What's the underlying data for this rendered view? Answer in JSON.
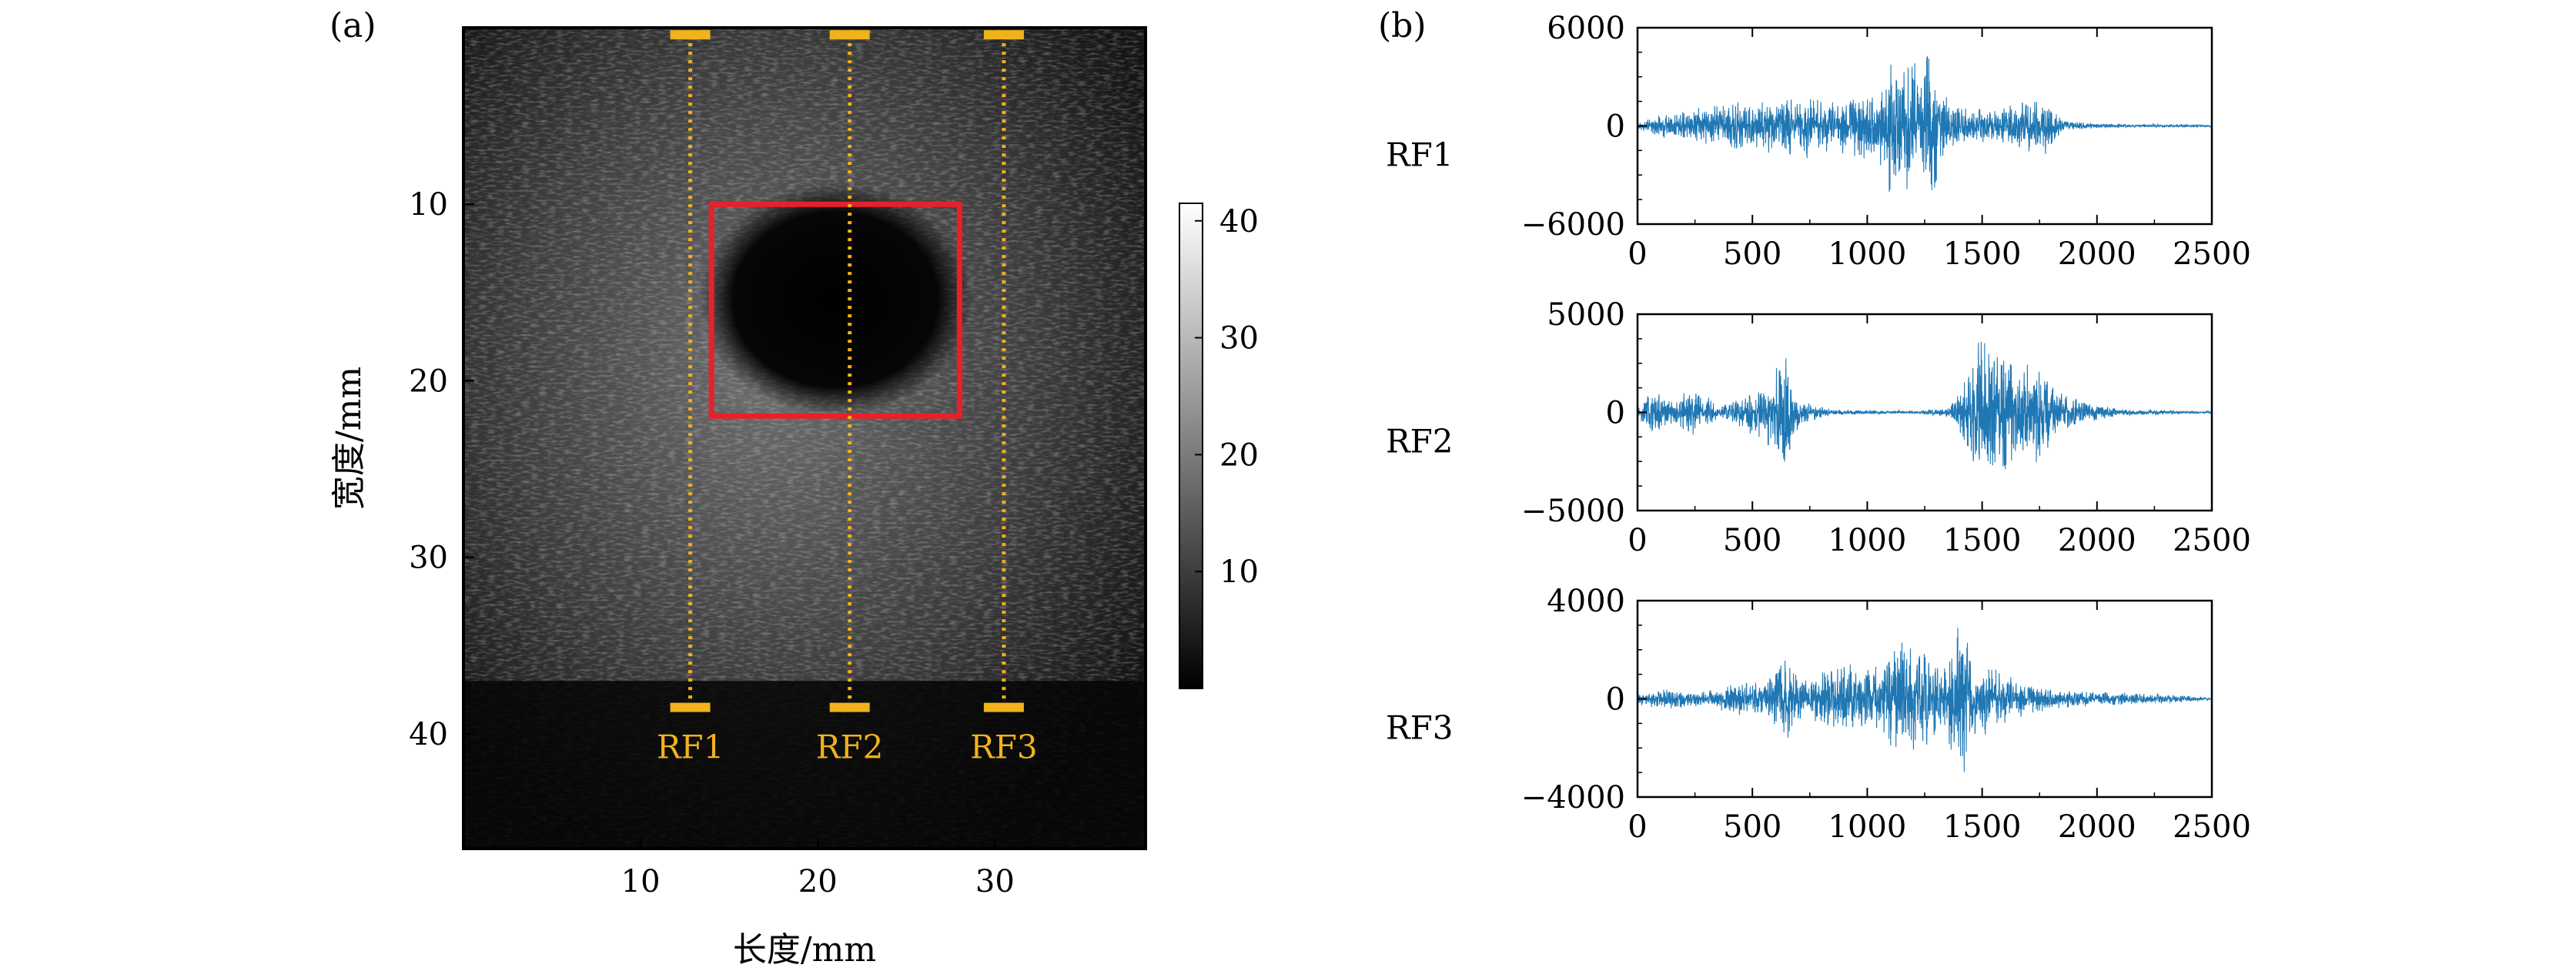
{
  "panel_a": {
    "label": "(a)",
    "chart_data": {
      "type": "heatmap",
      "description_of_content": "B-mode ultrasound image",
      "xlabel": "长度/mm",
      "ylabel": "宽度/mm",
      "xlim": [
        0,
        38.5
      ],
      "ylim": [
        46.5,
        0
      ],
      "xticks": [
        10,
        20,
        30
      ],
      "yticks": [
        10,
        20,
        30,
        40
      ],
      "colorbar": {
        "ticks": [
          10,
          20,
          30,
          40
        ],
        "range": [
          0,
          41.5
        ],
        "colormap": "gray"
      },
      "roi_box": {
        "x": [
          14,
          28
        ],
        "y": [
          10,
          22
        ],
        "color": "#e8202a"
      },
      "scan_lines": [
        {
          "name": "RF1",
          "x": 12.8,
          "y_start": 0.4,
          "y_end": 38.5
        },
        {
          "name": "RF2",
          "x": 21.8,
          "y_start": 0.4,
          "y_end": 38.5
        },
        {
          "name": "RF3",
          "x": 30.5,
          "y_start": 0.4,
          "y_end": 38.5
        }
      ],
      "marker_color": "#f2b21b"
    }
  },
  "panel_b": {
    "label": "(b)",
    "chart_data": [
      {
        "type": "line",
        "title": "RF1",
        "series_color": "#1f77b4",
        "xlim": [
          0,
          2500
        ],
        "ylim": [
          -6000,
          6000
        ],
        "xticks": [
          0,
          500,
          1000,
          1500,
          2000,
          2500
        ],
        "yticks": [
          -6000,
          0,
          6000
        ],
        "ytick_labels": [
          "−6000",
          "0",
          "6000"
        ],
        "envelope": [
          [
            0,
            250
          ],
          [
            100,
            700
          ],
          [
            250,
            1100
          ],
          [
            400,
            1500
          ],
          [
            600,
            1800
          ],
          [
            750,
            2200
          ],
          [
            850,
            1600
          ],
          [
            950,
            1900
          ],
          [
            1050,
            2300
          ],
          [
            1100,
            4500
          ],
          [
            1150,
            3600
          ],
          [
            1200,
            4800
          ],
          [
            1230,
            3200
          ],
          [
            1280,
            5600
          ],
          [
            1320,
            2200
          ],
          [
            1400,
            1300
          ],
          [
            1550,
            1100
          ],
          [
            1700,
            1600
          ],
          [
            1770,
            1900
          ],
          [
            1850,
            350
          ],
          [
            2000,
            150
          ],
          [
            2500,
            60
          ]
        ]
      },
      {
        "type": "line",
        "title": "RF2",
        "series_color": "#1f77b4",
        "xlim": [
          0,
          2500
        ],
        "ylim": [
          -5000,
          5000
        ],
        "xticks": [
          0,
          500,
          1000,
          1500,
          2000,
          2500
        ],
        "yticks": [
          -5000,
          0,
          5000
        ],
        "ytick_labels": [
          "−5000",
          "0",
          "5000"
        ],
        "envelope": [
          [
            0,
            300
          ],
          [
            70,
            1200
          ],
          [
            150,
            700
          ],
          [
            250,
            1500
          ],
          [
            350,
            300
          ],
          [
            480,
            1000
          ],
          [
            580,
            2000
          ],
          [
            650,
            3400
          ],
          [
            700,
            700
          ],
          [
            850,
            150
          ],
          [
            1200,
            80
          ],
          [
            1350,
            250
          ],
          [
            1430,
            1800
          ],
          [
            1480,
            4200
          ],
          [
            1540,
            3600
          ],
          [
            1600,
            3400
          ],
          [
            1660,
            2700
          ],
          [
            1750,
            2900
          ],
          [
            1820,
            1200
          ],
          [
            1950,
            600
          ],
          [
            2100,
            180
          ],
          [
            2500,
            50
          ]
        ]
      },
      {
        "type": "line",
        "title": "RF3",
        "series_color": "#1f77b4",
        "xlim": [
          0,
          2500
        ],
        "ylim": [
          -4000,
          4000
        ],
        "xticks": [
          0,
          500,
          1000,
          1500,
          2000,
          2500
        ],
        "yticks": [
          -4000,
          0,
          4000
        ],
        "ytick_labels": [
          "−4000",
          "0",
          "4000"
        ],
        "envelope": [
          [
            0,
            250
          ],
          [
            150,
            500
          ],
          [
            300,
            350
          ],
          [
            450,
            700
          ],
          [
            550,
            800
          ],
          [
            650,
            1900
          ],
          [
            700,
            900
          ],
          [
            850,
            1400
          ],
          [
            950,
            1500
          ],
          [
            1050,
            1500
          ],
          [
            1150,
            2600
          ],
          [
            1230,
            2500
          ],
          [
            1300,
            1500
          ],
          [
            1380,
            2800
          ],
          [
            1420,
            3800
          ],
          [
            1470,
            1600
          ],
          [
            1550,
            1600
          ],
          [
            1600,
            1100
          ],
          [
            1700,
            600
          ],
          [
            1850,
            400
          ],
          [
            2000,
            300
          ],
          [
            2200,
            250
          ],
          [
            2350,
            180
          ],
          [
            2500,
            30
          ]
        ]
      }
    ]
  }
}
